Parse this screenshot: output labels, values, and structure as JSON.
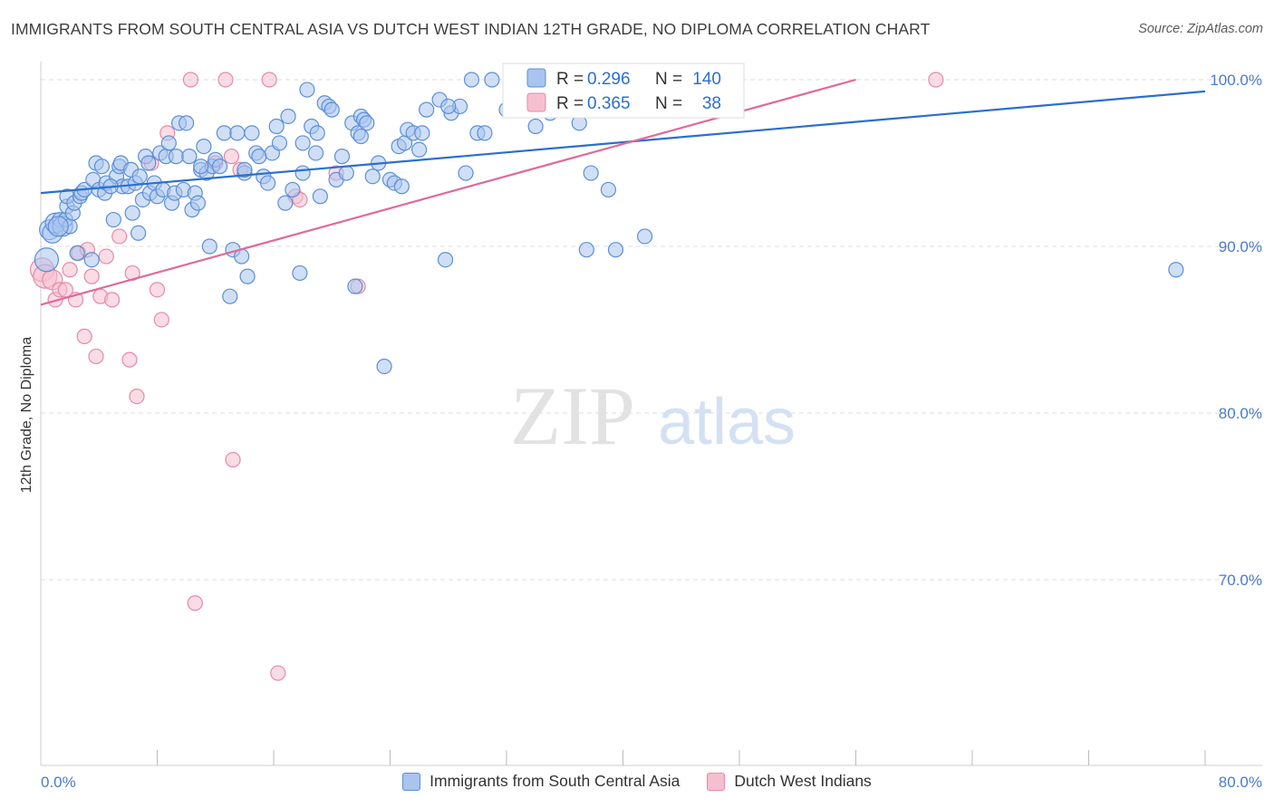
{
  "title": "IMMIGRANTS FROM SOUTH CENTRAL ASIA VS DUTCH WEST INDIAN 12TH GRADE, NO DIPLOMA CORRELATION CHART",
  "source": "Source: ZipAtlas.com",
  "watermark": {
    "zip": "ZIP",
    "atlas": "atlas"
  },
  "colors": {
    "blue_fill": "#a9c4ee",
    "blue_stroke": "#5b8fd8",
    "blue_line": "#2a6fd0",
    "pink_fill": "#f6bfd0",
    "pink_stroke": "#e48aa8",
    "pink_line": "#e0699a",
    "tick_label": "#4a7cc7",
    "grid": "#dddddd"
  },
  "legend": {
    "series1": {
      "r_label": "R = ",
      "r_value": "0.296",
      "n_label": "N = ",
      "n_value": "140"
    },
    "series2": {
      "r_label": "R = ",
      "r_value": "0.365",
      "n_label": "N = ",
      "n_value": "38"
    }
  },
  "chart_data": {
    "type": "scatter",
    "title": "IMMIGRANTS FROM SOUTH CENTRAL ASIA VS DUTCH WEST INDIAN 12TH GRADE, NO DIPLOMA CORRELATION CHART",
    "xlabel": "",
    "ylabel": "12th Grade, No Diploma",
    "xlim": [
      0,
      80
    ],
    "ylim": [
      61,
      101.5
    ],
    "x_tick_labels": [
      "0.0%",
      "80.0%"
    ],
    "y_ticks": [
      100,
      90,
      80,
      70
    ],
    "y_tick_labels": [
      "100.0%",
      "90.0%",
      "80.0%",
      "70.0%"
    ],
    "grid": true,
    "legend_position": "top-center",
    "series": [
      {
        "name": "Immigrants from South Central Asia",
        "color": "#5b8fd8",
        "trend": {
          "x": [
            0,
            80
          ],
          "y": [
            93.2,
            99.3
          ]
        },
        "points": [
          [
            0.6,
            91
          ],
          [
            0.8,
            90.8
          ],
          [
            1.0,
            91.4
          ],
          [
            1.3,
            91.6
          ],
          [
            1.5,
            91.2
          ],
          [
            1.7,
            91.6
          ],
          [
            1.8,
            92.4
          ],
          [
            1.8,
            93
          ],
          [
            2.0,
            91.2
          ],
          [
            2.2,
            92
          ],
          [
            2.3,
            92.6
          ],
          [
            2.5,
            89.6
          ],
          [
            2.7,
            93
          ],
          [
            2.8,
            93.2
          ],
          [
            3.0,
            93.4
          ],
          [
            3.5,
            89.2
          ],
          [
            3.6,
            94
          ],
          [
            3.8,
            95
          ],
          [
            4.0,
            93.4
          ],
          [
            4.2,
            94.8
          ],
          [
            4.4,
            93.2
          ],
          [
            4.5,
            93.8
          ],
          [
            5.0,
            91.6
          ],
          [
            5.2,
            94.2
          ],
          [
            5.4,
            94.8
          ],
          [
            5.5,
            95
          ],
          [
            5.6,
            93.6
          ],
          [
            6.0,
            93.6
          ],
          [
            6.2,
            94.6
          ],
          [
            6.3,
            92
          ],
          [
            6.5,
            93.8
          ],
          [
            6.7,
            90.8
          ],
          [
            6.8,
            94.2
          ],
          [
            7.0,
            92.8
          ],
          [
            7.2,
            95.4
          ],
          [
            7.4,
            95
          ],
          [
            7.5,
            93.2
          ],
          [
            7.8,
            93.8
          ],
          [
            8.0,
            93
          ],
          [
            8.2,
            95.6
          ],
          [
            8.4,
            93.4
          ],
          [
            8.6,
            95.4
          ],
          [
            8.8,
            96.2
          ],
          [
            9.0,
            92.6
          ],
          [
            9.2,
            93.2
          ],
          [
            9.3,
            95.4
          ],
          [
            9.5,
            97.4
          ],
          [
            9.8,
            93.4
          ],
          [
            10.0,
            97.4
          ],
          [
            10.2,
            95.4
          ],
          [
            10.4,
            92.2
          ],
          [
            10.6,
            93.2
          ],
          [
            10.8,
            92.6
          ],
          [
            11.0,
            94.6
          ],
          [
            11.2,
            96
          ],
          [
            11.4,
            94.4
          ],
          [
            11.6,
            90
          ],
          [
            11.8,
            94.8
          ],
          [
            12.0,
            95.2
          ],
          [
            12.3,
            94.8
          ],
          [
            12.6,
            96.8
          ],
          [
            13.0,
            87
          ],
          [
            13.2,
            89.8
          ],
          [
            13.5,
            96.8
          ],
          [
            13.8,
            89.4
          ],
          [
            14.0,
            94.4
          ],
          [
            14.2,
            88.2
          ],
          [
            14.5,
            96.8
          ],
          [
            14.8,
            95.6
          ],
          [
            15.0,
            95.4
          ],
          [
            15.3,
            94.2
          ],
          [
            15.6,
            93.8
          ],
          [
            15.9,
            95.6
          ],
          [
            16.2,
            97.2
          ],
          [
            16.4,
            96.2
          ],
          [
            16.8,
            92.6
          ],
          [
            17.0,
            97.8
          ],
          [
            17.3,
            93.4
          ],
          [
            17.8,
            88.4
          ],
          [
            18.0,
            94.4
          ],
          [
            18.3,
            99.4
          ],
          [
            18.6,
            97.2
          ],
          [
            18.9,
            95.6
          ],
          [
            19.0,
            96.8
          ],
          [
            19.2,
            93
          ],
          [
            19.5,
            98.6
          ],
          [
            19.8,
            98.4
          ],
          [
            20.0,
            98.2
          ],
          [
            20.3,
            94
          ],
          [
            20.7,
            95.4
          ],
          [
            21.0,
            94.4
          ],
          [
            21.4,
            97.4
          ],
          [
            21.6,
            87.6
          ],
          [
            21.8,
            96.8
          ],
          [
            22.0,
            97.8
          ],
          [
            22.2,
            97.6
          ],
          [
            22.4,
            97.4
          ],
          [
            22.8,
            94.2
          ],
          [
            23.2,
            95
          ],
          [
            23.6,
            82.8
          ],
          [
            24.0,
            94
          ],
          [
            24.3,
            93.8
          ],
          [
            24.6,
            96
          ],
          [
            24.8,
            93.6
          ],
          [
            25.0,
            96.2
          ],
          [
            25.2,
            97
          ],
          [
            25.6,
            96.8
          ],
          [
            26.0,
            95.8
          ],
          [
            26.2,
            96.8
          ],
          [
            26.5,
            98.2
          ],
          [
            27.4,
            98.8
          ],
          [
            27.8,
            89.2
          ],
          [
            28.2,
            98
          ],
          [
            28.8,
            98.4
          ],
          [
            29.2,
            94.4
          ],
          [
            29.6,
            100
          ],
          [
            30.0,
            96.8
          ],
          [
            30.5,
            96.8
          ],
          [
            31.0,
            100
          ],
          [
            32.0,
            98.2
          ],
          [
            33.0,
            99
          ],
          [
            34.0,
            97.2
          ],
          [
            35.0,
            98
          ],
          [
            36.0,
            98.2
          ],
          [
            37.0,
            97.4
          ],
          [
            37.5,
            89.8
          ],
          [
            37.8,
            94.4
          ],
          [
            39.0,
            93.4
          ],
          [
            39.5,
            89.8
          ],
          [
            41.5,
            90.6
          ],
          [
            78.0,
            88.6
          ],
          [
            0.4,
            89.2
          ],
          [
            1.2,
            91.2
          ],
          [
            4.8,
            93.6
          ],
          [
            11.0,
            94.8
          ],
          [
            14.0,
            94.6
          ],
          [
            18.0,
            96.2
          ],
          [
            22.0,
            96.6
          ],
          [
            28.0,
            98.4
          ],
          [
            34.5,
            98.8
          ]
        ]
      },
      {
        "name": "Dutch West Indians",
        "color": "#e48aa8",
        "trend": {
          "x": [
            0,
            56
          ],
          "y": [
            86.5,
            100
          ]
        },
        "points": [
          [
            0.1,
            88.6
          ],
          [
            0.3,
            88.2
          ],
          [
            0.8,
            88
          ],
          [
            1.0,
            86.8
          ],
          [
            1.3,
            87.4
          ],
          [
            1.7,
            87.4
          ],
          [
            2.0,
            88.6
          ],
          [
            2.4,
            86.8
          ],
          [
            2.6,
            89.6
          ],
          [
            3.0,
            84.6
          ],
          [
            3.2,
            89.8
          ],
          [
            3.5,
            88.2
          ],
          [
            3.8,
            83.4
          ],
          [
            4.1,
            87
          ],
          [
            4.5,
            89.4
          ],
          [
            4.9,
            86.8
          ],
          [
            5.4,
            90.6
          ],
          [
            6.1,
            83.2
          ],
          [
            6.3,
            88.4
          ],
          [
            6.6,
            81
          ],
          [
            7.6,
            95
          ],
          [
            8.0,
            87.4
          ],
          [
            8.3,
            85.6
          ],
          [
            8.7,
            96.8
          ],
          [
            10.3,
            100
          ],
          [
            10.6,
            68.6
          ],
          [
            12.0,
            95
          ],
          [
            12.7,
            100
          ],
          [
            13.1,
            95.4
          ],
          [
            13.7,
            94.6
          ],
          [
            13.2,
            77.2
          ],
          [
            15.7,
            100
          ],
          [
            16.3,
            64.4
          ],
          [
            17.5,
            93
          ],
          [
            17.8,
            92.8
          ],
          [
            20.3,
            94.4
          ],
          [
            21.8,
            87.6
          ],
          [
            61.5,
            100
          ]
        ]
      }
    ]
  },
  "bottom_legend": {
    "series1": "Immigrants from South Central Asia",
    "series2": "Dutch West Indians"
  }
}
